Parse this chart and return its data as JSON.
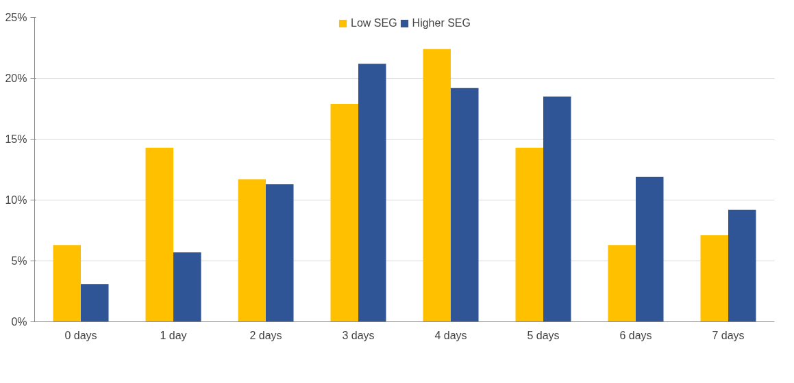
{
  "chart_data": {
    "type": "bar",
    "categories": [
      "0 days",
      "1 day",
      "2 days",
      "3 days",
      "4 days",
      "5 days",
      "6 days",
      "7 days"
    ],
    "series": [
      {
        "name": "Low SEG",
        "color": "#ffc000",
        "values": [
          6.3,
          14.3,
          11.7,
          17.9,
          22.4,
          14.3,
          6.3,
          7.1
        ]
      },
      {
        "name": "Higher SEG",
        "color": "#2f5597",
        "values": [
          3.1,
          5.7,
          11.3,
          21.2,
          19.2,
          18.5,
          11.9,
          9.2
        ]
      }
    ],
    "ylim": [
      0,
      25
    ],
    "yticks": [
      {
        "value": 0,
        "label": "0%"
      },
      {
        "value": 5,
        "label": "5%"
      },
      {
        "value": 10,
        "label": "10%"
      },
      {
        "value": 15,
        "label": "15%"
      },
      {
        "value": 20,
        "label": "20%"
      },
      {
        "value": 25,
        "label": "25%"
      }
    ],
    "grid": "y",
    "legend": "top"
  }
}
